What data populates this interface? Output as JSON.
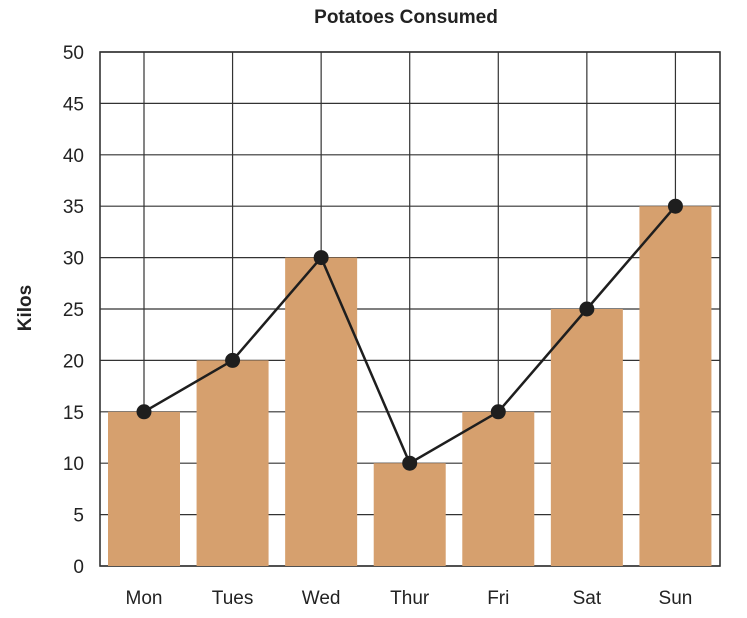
{
  "chart_data": {
    "type": "bar",
    "title": "Potatoes Consumed",
    "xlabel": "",
    "ylabel": "Kilos",
    "categories": [
      "Mon",
      "Tues",
      "Wed",
      "Thur",
      "Fri",
      "Sat",
      "Sun"
    ],
    "values": [
      15,
      20,
      30,
      10,
      15,
      25,
      35
    ],
    "line_overlay": true,
    "ylim": [
      0,
      50
    ],
    "yticks": [
      "0",
      "5",
      "10",
      "15",
      "20",
      "25",
      "30",
      "35",
      "40",
      "45",
      "50"
    ],
    "grid": true,
    "colors": {
      "bar": "#d6a06e",
      "line": "#1e1e1e",
      "grid": "#333333"
    }
  }
}
